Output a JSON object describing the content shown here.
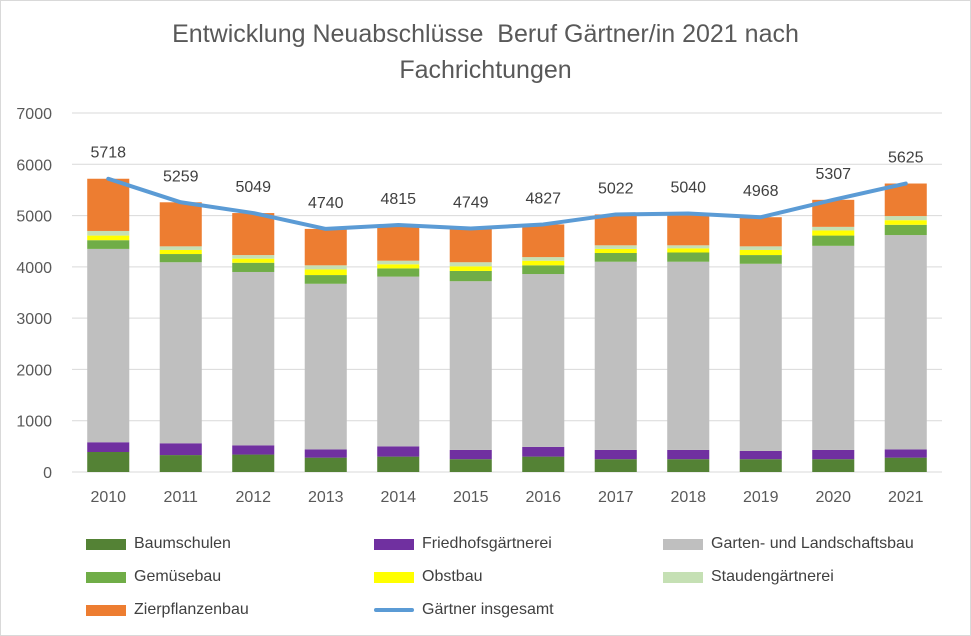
{
  "chart_data": {
    "type": "bar",
    "stacked": true,
    "title_lines": [
      "Entwicklung Neuabschlüsse  Beruf Gärtner/in 2021 nach",
      "Fachrichtungen"
    ],
    "xlabel": "",
    "ylabel": "",
    "ylim": [
      0,
      7000
    ],
    "yticks": [
      0,
      1000,
      2000,
      3000,
      4000,
      5000,
      6000,
      7000
    ],
    "grid": true,
    "legend_position": "bottom",
    "categories": [
      "2010",
      "2011",
      "2012",
      "2013",
      "2014",
      "2015",
      "2016",
      "2017",
      "2018",
      "2019",
      "2020",
      "2021"
    ],
    "series": [
      {
        "name": "Baumschulen",
        "color": "#548235",
        "values": [
          390,
          330,
          340,
          280,
          300,
          250,
          300,
          250,
          250,
          250,
          250,
          280
        ]
      },
      {
        "name": "Friedhofsgärtnerei",
        "color": "#7030a0",
        "values": [
          190,
          230,
          180,
          160,
          200,
          180,
          190,
          180,
          180,
          160,
          180,
          160
        ]
      },
      {
        "name": "Garten- und Landschaftsbau",
        "color": "#bfbfbf",
        "values": [
          3770,
          3530,
          3380,
          3230,
          3310,
          3290,
          3370,
          3670,
          3670,
          3650,
          3980,
          4180
        ]
      },
      {
        "name": "Gemüsebau",
        "color": "#70ad47",
        "values": [
          170,
          160,
          180,
          170,
          160,
          200,
          170,
          170,
          180,
          170,
          200,
          200
        ]
      },
      {
        "name": "Obstbau",
        "color": "#ffff00",
        "values": [
          90,
          80,
          80,
          110,
          80,
          90,
          90,
          80,
          80,
          100,
          100,
          90
        ]
      },
      {
        "name": "Staudengärtnerei",
        "color": "#c5e0b4",
        "values": [
          90,
          70,
          70,
          80,
          70,
          80,
          70,
          70,
          60,
          70,
          70,
          80
        ]
      },
      {
        "name": "Zierpflanzenbau",
        "color": "#ed7d31",
        "values": [
          1018,
          859,
          819,
          710,
          695,
          659,
          637,
          602,
          620,
          568,
          527,
          635
        ]
      }
    ],
    "line_series": {
      "name": "Gärtner insgesamt",
      "color": "#5b9bd5",
      "values": [
        5718,
        5259,
        5049,
        4740,
        4815,
        4749,
        4827,
        5022,
        5040,
        4968,
        5307,
        5625
      ]
    }
  }
}
